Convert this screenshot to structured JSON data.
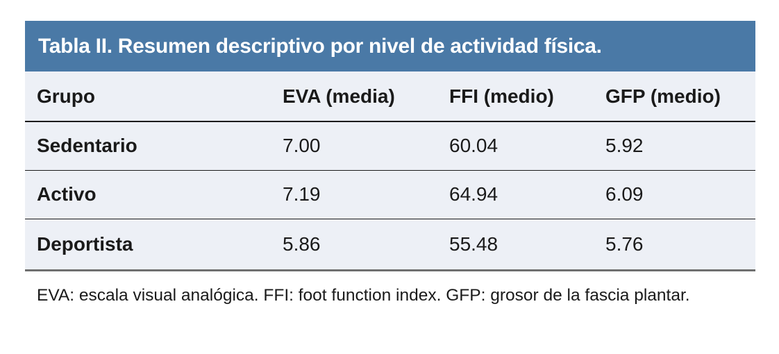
{
  "table": {
    "title": "Tabla II. Resumen descriptivo por nivel de actividad física.",
    "columns": {
      "grupo": "Grupo",
      "eva": "EVA (media)",
      "ffi": "FFI (medio)",
      "gfp": "GFP (medio)"
    },
    "rows": [
      [
        "Sedentario",
        "7.00",
        "60.04",
        "5.92"
      ],
      [
        "Activo",
        "7.19",
        "64.94",
        "6.09"
      ],
      [
        "Deportista",
        "5.86",
        "55.48",
        "5.76"
      ]
    ],
    "footnote": "EVA: escala visual analógica. FFI: foot function index. GFP: grosor de la fascia plantar."
  },
  "chart_data": {
    "type": "table",
    "title": "Tabla II. Resumen descriptivo por nivel de actividad física.",
    "categories": [
      "Sedentario",
      "Activo",
      "Deportista"
    ],
    "series": [
      {
        "name": "EVA (media)",
        "values": [
          7.0,
          7.19,
          5.86
        ]
      },
      {
        "name": "FFI (medio)",
        "values": [
          60.04,
          64.94,
          55.48
        ]
      },
      {
        "name": "GFP (medio)",
        "values": [
          5.92,
          6.09,
          5.76
        ]
      }
    ],
    "footnote": "EVA: escala visual analógica. FFI: foot function index. GFP: grosor de la fascia plantar."
  },
  "colors": {
    "title_bar_bg": "#4A79A6",
    "title_text": "#FFFFFF",
    "table_body_bg": "#EDF0F6",
    "text": "#1A1A1A",
    "row_divider": "#1B1B1B",
    "bottom_border": "#6F6F6F",
    "page_bg": "#FFFFFF"
  }
}
